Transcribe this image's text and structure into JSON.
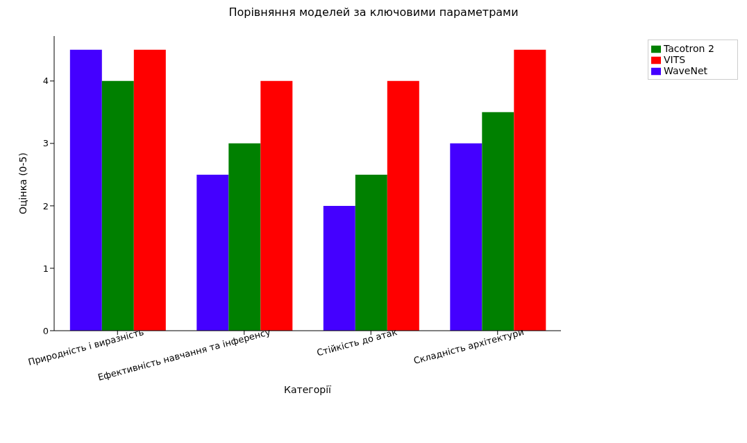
{
  "chart_data": {
    "type": "bar",
    "title": "Порівняння моделей за ключовими параметрами",
    "xlabel": "Категорії",
    "ylabel": "Оцінка (0-5)",
    "categories": [
      "Природність і виразність",
      "Ефективність навчання та інференсу",
      "Стійкість до атак",
      "Складність архітектури"
    ],
    "series": [
      {
        "name": "WaveNet",
        "color": "#4400ff",
        "values": [
          4.5,
          2.5,
          2,
          3
        ]
      },
      {
        "name": "Tacotron 2",
        "color": "#008000",
        "values": [
          4,
          3,
          2.5,
          3.5
        ]
      },
      {
        "name": "VITS",
        "color": "#ff0000",
        "values": [
          4.5,
          4,
          4,
          4.5
        ]
      }
    ],
    "ylim": [
      0,
      4.72
    ],
    "yticks": [
      0,
      1,
      2,
      3,
      4
    ],
    "grid": false,
    "legend": "top right"
  }
}
